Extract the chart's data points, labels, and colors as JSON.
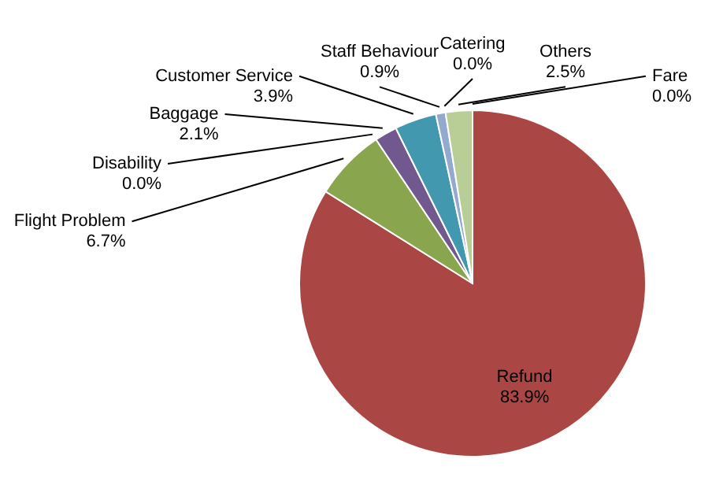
{
  "chart_data": {
    "type": "pie",
    "categories": [
      "Refund",
      "Flight Problem",
      "Disability",
      "Baggage",
      "Customer Service",
      "Staff Behaviour",
      "Catering",
      "Others",
      "Fare"
    ],
    "values": [
      83.9,
      6.7,
      0.0,
      2.1,
      3.9,
      0.9,
      0.0,
      2.5,
      0.0
    ],
    "value_labels": [
      "83.9%",
      "6.7%",
      "0.0%",
      "2.1%",
      "3.9%",
      "0.9%",
      "0.0%",
      "2.5%",
      "0.0%"
    ],
    "colors": [
      "#aa4643",
      "#89a54e",
      "#4572a7",
      "#71588f",
      "#4198af",
      "#93a9cf",
      "#db843d",
      "#b9cd96",
      "#a47d7c"
    ]
  }
}
